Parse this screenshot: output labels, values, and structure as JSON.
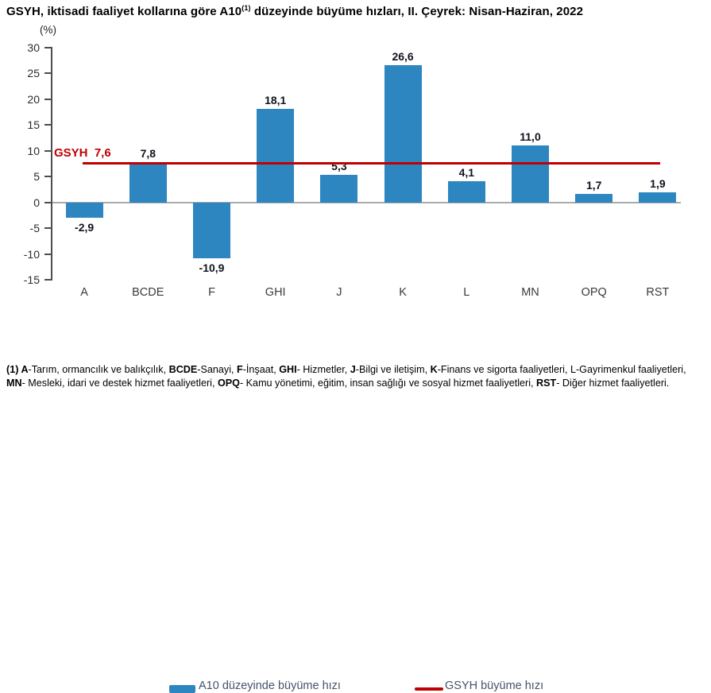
{
  "title": {
    "prefix": "GSYH, iktisadi faaliyet kollarına göre A10",
    "sup": "(1)",
    "suffix": " düzeyinde büyüme hızları, II. Çeyrek: Nisan-Haziran, 2022"
  },
  "chart_data": {
    "type": "bar",
    "title": "GSYH, iktisadi faaliyet kollarına göre A10(1) düzeyinde büyüme hızları, II. Çeyrek: Nisan-Haziran, 2022",
    "unit_label": "(%)",
    "categories": [
      "A",
      "BCDE",
      "F",
      "GHI",
      "J",
      "K",
      "L",
      "MN",
      "OPQ",
      "RST"
    ],
    "values": [
      -2.9,
      7.8,
      -10.9,
      18.1,
      5.3,
      26.6,
      4.1,
      11.0,
      1.7,
      1.9
    ],
    "value_labels": [
      "-2,9",
      "7,8",
      "-10,9",
      "18,1",
      "5,3",
      "26,6",
      "4,1",
      "11,0",
      "1,7",
      "1,9"
    ],
    "bar_color": "#2E86C1",
    "axis_color": "#4d4d4d",
    "zero_line_color": "#ABABAB",
    "ylim": [
      -15,
      30
    ],
    "ytick_step": 5,
    "yticks": [
      30,
      25,
      20,
      15,
      10,
      5,
      0,
      -5,
      -10,
      -15
    ],
    "grid": "off",
    "reference_line": {
      "value": 7.6,
      "label": "GSYH  7,6",
      "color": "#C00000"
    },
    "legend": {
      "position": "bottom",
      "items": [
        {
          "label": "A10 düzeyinde büyüme hızı",
          "type": "bar",
          "color": "#2E86C1"
        },
        {
          "label": "GSYH büyüme hızı",
          "type": "line",
          "color": "#C00000"
        }
      ]
    }
  },
  "footnote": {
    "lines": [
      [
        {
          "t": "(1) ",
          "b": true
        },
        {
          "t": "A",
          "b": true
        },
        {
          "t": "-Tarım, ormancılık ve balıkçılık, ",
          "b": false
        },
        {
          "t": "BCDE",
          "b": true
        },
        {
          "t": "-Sanayi, ",
          "b": false
        },
        {
          "t": "F",
          "b": true
        },
        {
          "t": "-İnşaat, ",
          "b": false
        },
        {
          "t": "GHI",
          "b": true
        },
        {
          "t": "- Hizmetler, ",
          "b": false
        },
        {
          "t": "J",
          "b": true
        },
        {
          "t": "-Bilgi ve iletişim, ",
          "b": false
        },
        {
          "t": "K",
          "b": true
        },
        {
          "t": "-Finans ve sigorta faaliyetleri, ",
          "b": false
        },
        {
          "t": "L-Gayrimenkul faaliyetleri,",
          "b": false
        }
      ],
      [
        {
          "t": "MN",
          "b": true
        },
        {
          "t": "- Mesleki, idari ve destek hizmet faaliyetleri, ",
          "b": false
        },
        {
          "t": "OPQ",
          "b": true
        },
        {
          "t": "- Kamu yönetimi, eğitim, insan sağlığı ve sosyal hizmet faaliyetleri, ",
          "b": false
        },
        {
          "t": "RST",
          "b": true
        },
        {
          "t": "- Diğer hizmet faaliyetleri.",
          "b": false
        }
      ]
    ]
  }
}
